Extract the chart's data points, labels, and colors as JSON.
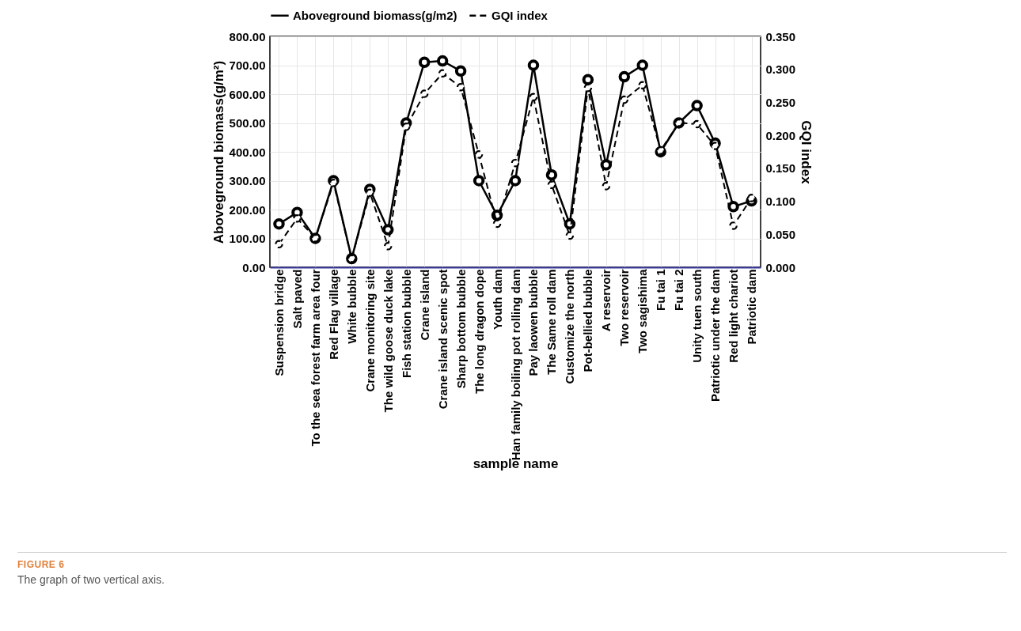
{
  "chart_data": {
    "type": "line",
    "xlabel": "sample name",
    "ylabel": "Aboveground biomass(g/m²)",
    "y2label": "GQI index",
    "categories": [
      "Suspension bridge",
      "Salt paved",
      "To the sea forest farm area four",
      "Red Flag village",
      "White bubble",
      "Crane monitoring site",
      "The wild goose duck lake",
      "Fish station bubble",
      "Crane island",
      "Crane island scenic spot",
      "Sharp bottom bubble",
      "The long dragon dope",
      "Youth dam",
      "Han family boiling pot rolling dam",
      "Pay laowen bubble",
      "The Same roll dam",
      "Customize the north",
      "Pot-bellied bubble",
      "A reservoir",
      "Two reservoir",
      "Two sagishima",
      "Fu tai 1",
      "Fu tai 2",
      "Unity tuen south",
      "Patriotic under the dam",
      "Red light chariot",
      "Patriotic dam"
    ],
    "series": [
      {
        "name": "Aboveground biomass(g/m2)",
        "color": "#000000",
        "line_style": "solid",
        "values": [
          150,
          190,
          100,
          300,
          30,
          270,
          130,
          500,
          710,
          715,
          680,
          300,
          180,
          300,
          700,
          320,
          150,
          650,
          355,
          660,
          700,
          400,
          500,
          560,
          430,
          210,
          230
        ]
      },
      {
        "name": "GQI index",
        "color": "#000000",
        "axis": "y2",
        "line_style": "dashed",
        "values": [
          0.035,
          0.074,
          0.044,
          0.128,
          0.013,
          0.113,
          0.032,
          0.213,
          0.263,
          0.294,
          0.273,
          0.171,
          0.066,
          0.158,
          0.258,
          0.125,
          0.048,
          0.272,
          0.123,
          0.254,
          0.276,
          0.177,
          0.219,
          0.217,
          0.184,
          0.063,
          0.105
        ]
      }
    ],
    "ylim": [
      0,
      800
    ],
    "yticks": [
      {
        "value": 0,
        "label": "0.00"
      },
      {
        "value": 100,
        "label": "100.00"
      },
      {
        "value": 200,
        "label": "200.00"
      },
      {
        "value": 300,
        "label": "300.00"
      },
      {
        "value": 400,
        "label": "400.00"
      },
      {
        "value": 500,
        "label": "500.00"
      },
      {
        "value": 600,
        "label": "600.00"
      },
      {
        "value": 700,
        "label": "700.00"
      },
      {
        "value": 800,
        "label": "800.00"
      }
    ],
    "y2lim": [
      0,
      0.35
    ],
    "y2ticks": [
      {
        "value": 0,
        "label": "0.000"
      },
      {
        "value": 0.05,
        "label": "0.050"
      },
      {
        "value": 0.1,
        "label": "0.100"
      },
      {
        "value": 0.15,
        "label": "0.150"
      },
      {
        "value": 0.2,
        "label": "0.200"
      },
      {
        "value": 0.25,
        "label": "0.250"
      },
      {
        "value": 0.3,
        "label": "0.300"
      },
      {
        "value": 0.35,
        "label": "0.350"
      }
    ],
    "grid": true,
    "legend": "top",
    "marker": "circle",
    "annotations": [
      "FIGURE 6",
      "The graph of two vertical axis."
    ]
  }
}
